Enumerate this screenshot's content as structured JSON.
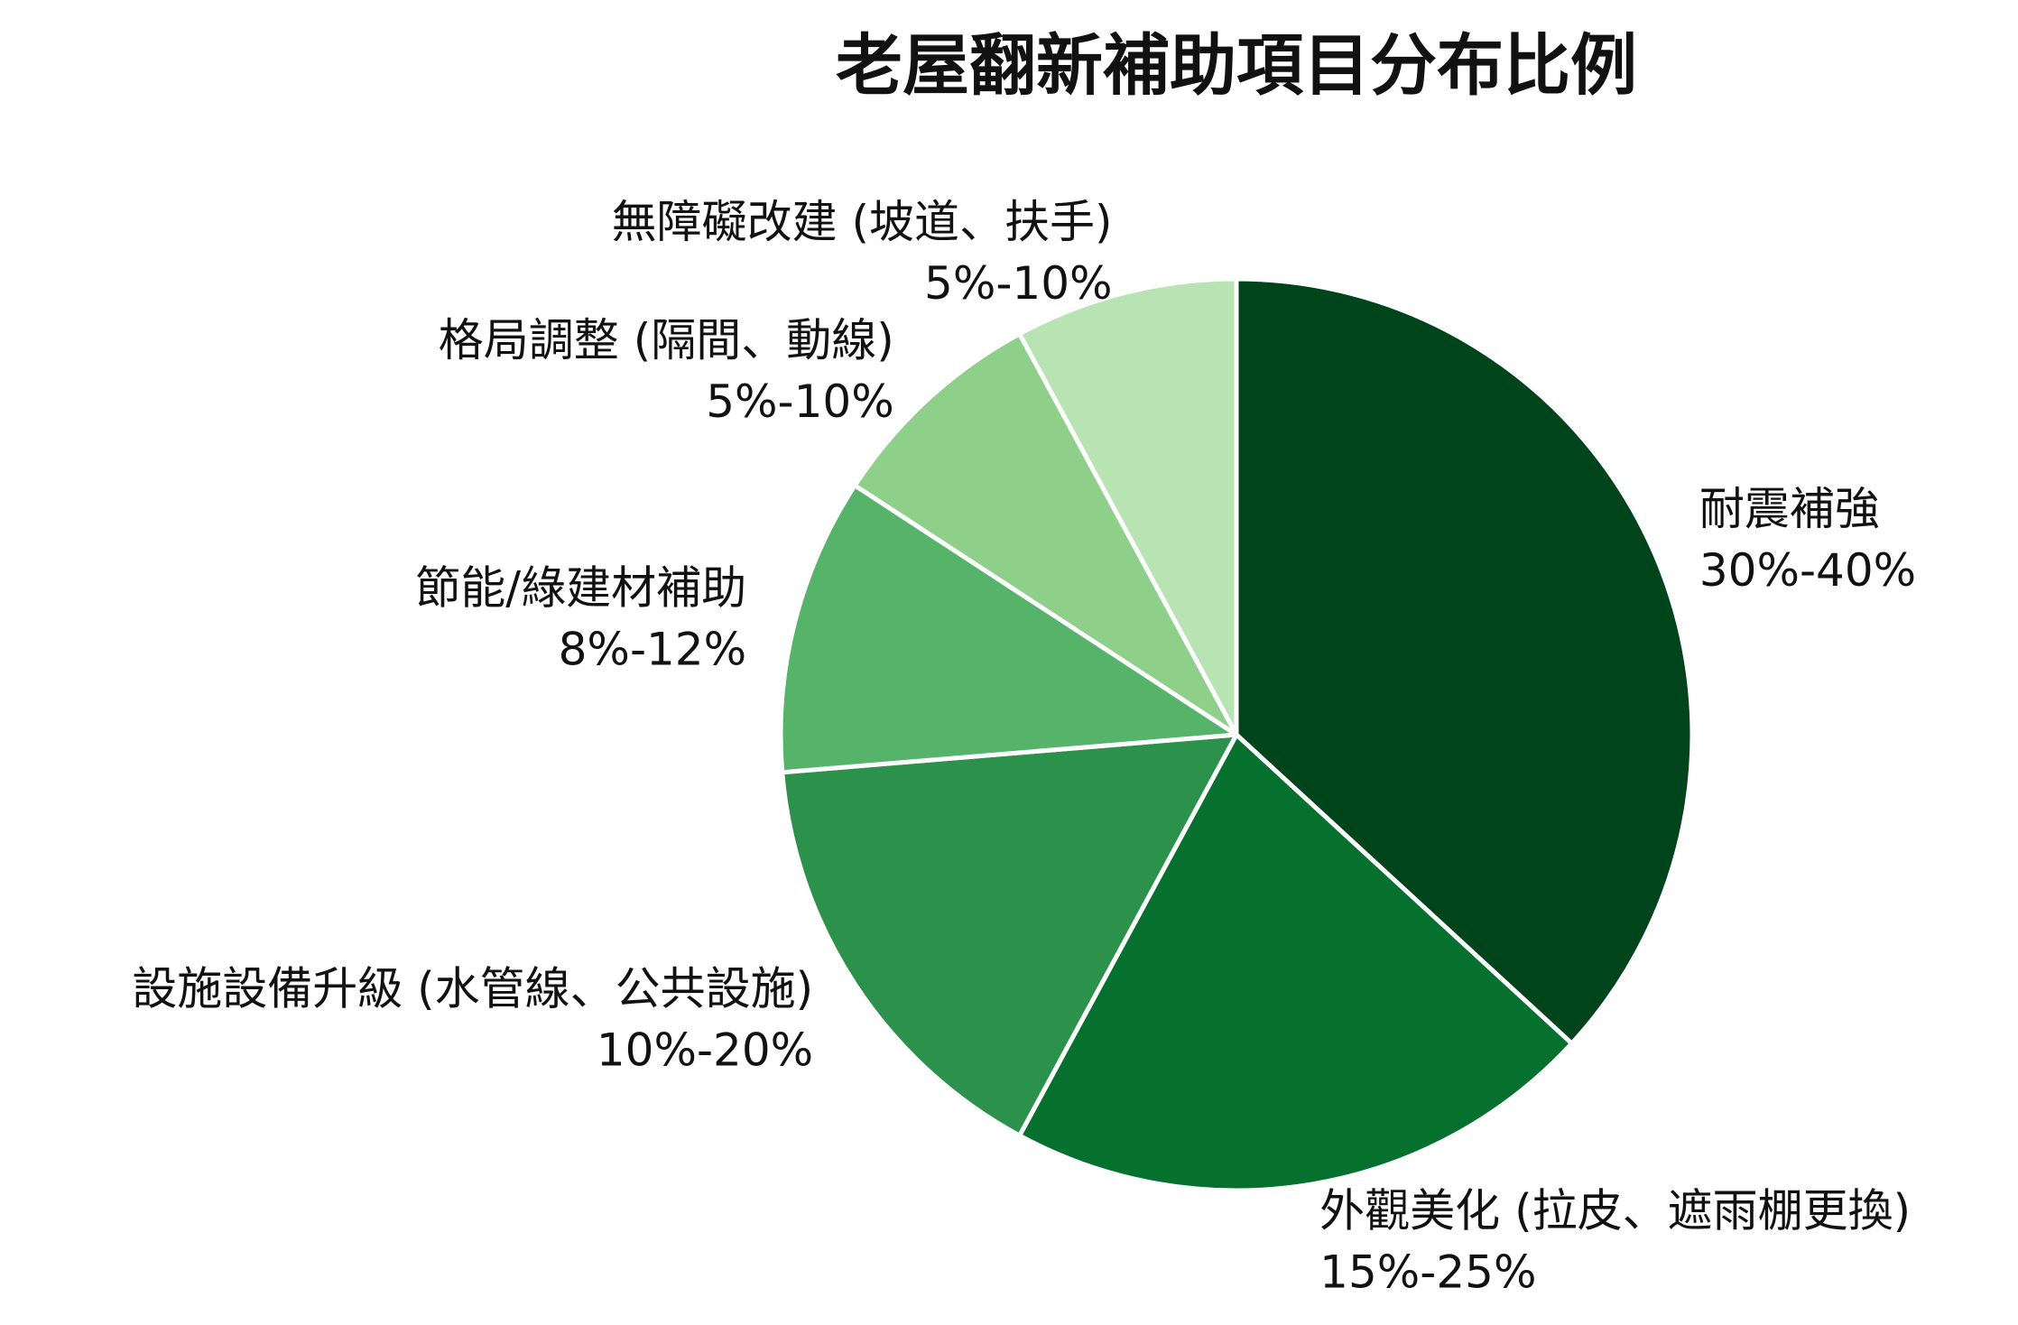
{
  "chart_data": {
    "type": "pie",
    "title": "老屋翻新補助項目分布比例",
    "slices": [
      {
        "label": "耐震補強",
        "range": "30%-40%",
        "value": 35,
        "color": "#00441b"
      },
      {
        "label": "外觀美化 (拉皮、遮雨棚更換)",
        "range": "15%-25%",
        "value": 20,
        "color": "#06702f"
      },
      {
        "label": "設施設備升級 (水管線、公共設施)",
        "range": "10%-20%",
        "value": 15,
        "color": "#2c914b"
      },
      {
        "label": "節能/綠建材補助",
        "range": "8%-12%",
        "value": 10,
        "color": "#56b36a"
      },
      {
        "label": "格局調整 (隔間、動線)",
        "range": "5%-10%",
        "value": 7.5,
        "color": "#8ecf89"
      },
      {
        "label": "無障礙改建 (坡道、扶手)",
        "range": "5%-10%",
        "value": 7.5,
        "color": "#b8e3b2"
      }
    ],
    "start_angle": "top",
    "direction": "clockwise",
    "edge_color": "#ffffff",
    "legend": "none"
  }
}
